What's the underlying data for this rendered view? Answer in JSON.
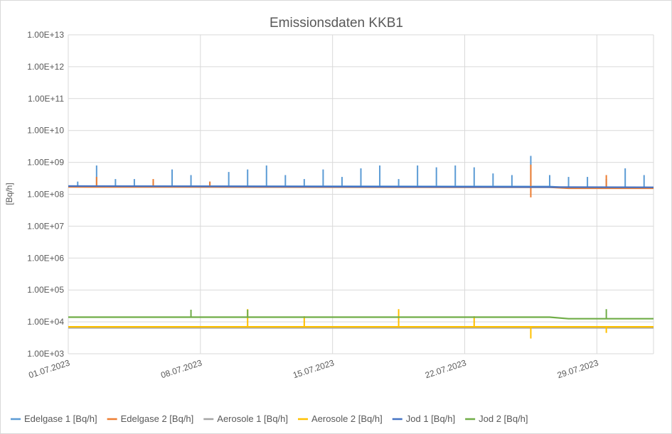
{
  "chart_data": {
    "type": "line",
    "title": "Emissionsdaten KKB1",
    "xlabel": "",
    "ylabel": "[Bq/h]",
    "y_scale": "log",
    "ylim": [
      1000,
      10000000000000
    ],
    "xlim": [
      "01.07.2023",
      "31.07.2023"
    ],
    "y_tick_labels": [
      "1.00E+03",
      "1.00E+04",
      "1.00E+05",
      "1.00E+06",
      "1.00E+07",
      "1.00E+08",
      "1.00E+09",
      "1.00E+10",
      "1.00E+11",
      "1.00E+12",
      "1.00E+13"
    ],
    "x_tick_labels": [
      "01.07.2023",
      "08.07.2023",
      "15.07.2023",
      "22.07.2023",
      "29.07.2023"
    ],
    "grid": true,
    "legend_position": "bottom",
    "series": [
      {
        "name": "Edelgase 1 [Bq/h]",
        "color": "#5B9BD5",
        "baseline": [
          [
            "01.07.2023",
            180000000
          ],
          [
            "26.07.2023",
            175000000
          ],
          [
            "27.07.2023",
            160000000
          ],
          [
            "31.07.2023",
            160000000
          ]
        ],
        "spikes": [
          [
            "01.07.2023",
            250000000
          ],
          [
            "02.07.2023",
            800000000
          ],
          [
            "03.07.2023",
            300000000
          ],
          [
            "04.07.2023",
            300000000
          ],
          [
            "05.07.2023",
            250000000
          ],
          [
            "06.07.2023",
            600000000
          ],
          [
            "07.07.2023",
            400000000
          ],
          [
            "08.07.2023",
            250000000
          ],
          [
            "09.07.2023",
            500000000
          ],
          [
            "10.07.2023",
            600000000
          ],
          [
            "11.07.2023",
            800000000
          ],
          [
            "12.07.2023",
            400000000
          ],
          [
            "13.07.2023",
            300000000
          ],
          [
            "14.07.2023",
            600000000
          ],
          [
            "15.07.2023",
            350000000
          ],
          [
            "16.07.2023",
            650000000
          ],
          [
            "17.07.2023",
            800000000
          ],
          [
            "18.07.2023",
            300000000
          ],
          [
            "19.07.2023",
            800000000
          ],
          [
            "20.07.2023",
            700000000
          ],
          [
            "21.07.2023",
            800000000
          ],
          [
            "22.07.2023",
            700000000
          ],
          [
            "23.07.2023",
            450000000
          ],
          [
            "24.07.2023",
            400000000
          ],
          [
            "25.07.2023",
            1600000000
          ],
          [
            "26.07.2023",
            400000000
          ],
          [
            "27.07.2023",
            350000000
          ],
          [
            "28.07.2023",
            350000000
          ],
          [
            "29.07.2023",
            300000000
          ],
          [
            "30.07.2023",
            650000000
          ],
          [
            "31.07.2023",
            400000000
          ]
        ]
      },
      {
        "name": "Edelgase 2 [Bq/h]",
        "color": "#ED7D31",
        "baseline": [
          [
            "01.07.2023",
            170000000
          ],
          [
            "26.07.2023",
            165000000
          ],
          [
            "27.07.2023",
            155000000
          ],
          [
            "31.07.2023",
            155000000
          ]
        ],
        "spikes": [
          [
            "02.07.2023",
            350000000
          ],
          [
            "05.07.2023",
            300000000
          ],
          [
            "08.07.2023",
            250000000
          ],
          [
            "25.07.2023",
            850000000
          ],
          [
            "25.07.2023",
            80000000
          ],
          [
            "29.07.2023",
            400000000
          ]
        ]
      },
      {
        "name": "Aerosole 1 [Bq/h]",
        "color": "#A5A5A5",
        "baseline": [
          [
            "01.07.2023",
            6500
          ],
          [
            "31.07.2023",
            6500
          ]
        ]
      },
      {
        "name": "Aerosole 2 [Bq/h]",
        "color": "#FFC000",
        "baseline": [
          [
            "01.07.2023",
            7000
          ],
          [
            "31.07.2023",
            7000
          ]
        ],
        "spikes": [
          [
            "10.07.2023",
            25000
          ],
          [
            "13.07.2023",
            15000
          ],
          [
            "18.07.2023",
            25000
          ],
          [
            "22.07.2023",
            15000
          ],
          [
            "25.07.2023",
            3000
          ],
          [
            "29.07.2023",
            4500
          ]
        ]
      },
      {
        "name": "Jod 1 [Bq/h]",
        "color": "#4472C4",
        "baseline": [
          [
            "01.07.2023",
            180000000
          ],
          [
            "31.07.2023",
            165000000
          ]
        ]
      },
      {
        "name": "Jod 2 [Bq/h]",
        "color": "#70AD47",
        "baseline": [
          [
            "01.07.2023",
            14000
          ],
          [
            "26.07.2023",
            14000
          ],
          [
            "27.07.2023",
            12500
          ],
          [
            "31.07.2023",
            12500
          ]
        ],
        "spikes": [
          [
            "07.07.2023",
            24000
          ],
          [
            "10.07.2023",
            24000
          ],
          [
            "29.07.2023",
            25000
          ]
        ]
      }
    ]
  }
}
